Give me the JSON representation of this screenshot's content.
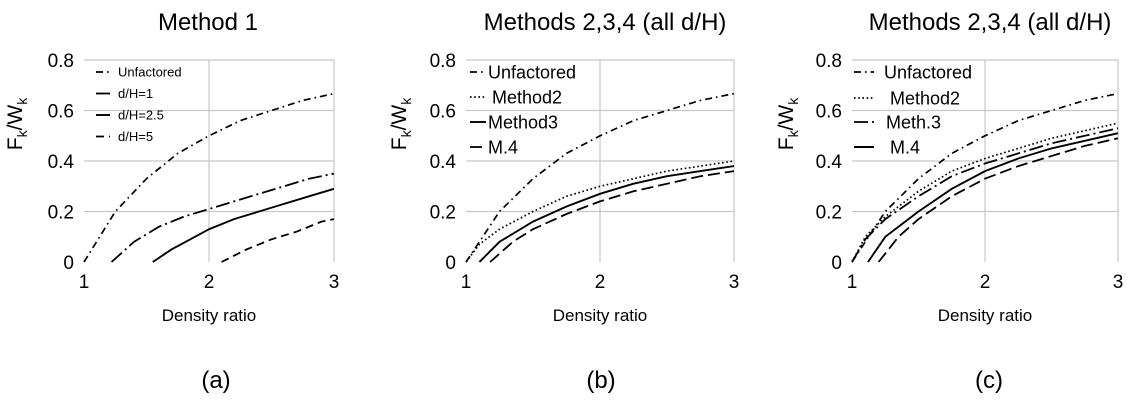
{
  "chart_data": [
    {
      "type": "line",
      "title": "Method 1",
      "panel_label": "(a)",
      "xlabel": "Density ratio",
      "ylabel": "Fk/Wk",
      "ylabel_main": "F",
      "ylabel_sub1": "k",
      "ylabel_mid": "/W",
      "ylabel_sub2": "k",
      "xlim": [
        1,
        3
      ],
      "ylim": [
        0,
        0.8
      ],
      "xticks": [
        "1",
        "2",
        "3"
      ],
      "yticks": [
        "0",
        "0.2",
        "0.4",
        "0.6",
        "0.8"
      ],
      "grid": true,
      "legend_position": "top-left",
      "series": [
        {
          "name": "Unfactored",
          "style": "dashdot",
          "x": [
            1.0,
            1.25,
            1.5,
            1.75,
            2.0,
            2.25,
            2.5,
            2.75,
            3.0
          ],
          "y": [
            0.0,
            0.2,
            0.33,
            0.43,
            0.5,
            0.56,
            0.6,
            0.64,
            0.667
          ]
        },
        {
          "name": "d/H=1",
          "style": "longdashdot",
          "x": [
            1.22,
            1.4,
            1.6,
            1.8,
            2.0,
            2.2,
            2.4,
            2.6,
            2.8,
            3.0
          ],
          "y": [
            0.0,
            0.08,
            0.14,
            0.18,
            0.21,
            0.24,
            0.27,
            0.3,
            0.33,
            0.35
          ]
        },
        {
          "name": "d/H=2.5",
          "style": "solid",
          "x": [
            1.55,
            1.7,
            1.85,
            2.0,
            2.2,
            2.4,
            2.6,
            2.8,
            3.0
          ],
          "y": [
            0.0,
            0.05,
            0.09,
            0.13,
            0.17,
            0.2,
            0.23,
            0.26,
            0.29
          ]
        },
        {
          "name": "d/H=5",
          "style": "dashed",
          "x": [
            2.1,
            2.3,
            2.5,
            2.7,
            2.9,
            3.0
          ],
          "y": [
            0.0,
            0.05,
            0.09,
            0.12,
            0.16,
            0.17
          ]
        }
      ]
    },
    {
      "type": "line",
      "title": "Methods 2,3,4 (all d/H)",
      "panel_label": "(b)",
      "xlabel": "Density ratio",
      "ylabel": "Fk/Wk",
      "ylabel_main": "F",
      "ylabel_sub1": "k",
      "ylabel_mid": "/W",
      "ylabel_sub2": "k",
      "xlim": [
        1,
        3
      ],
      "ylim": [
        0,
        0.8
      ],
      "xticks": [
        "1",
        "2",
        "3"
      ],
      "yticks": [
        "0",
        "0.2",
        "0.4",
        "0.6",
        "0.8"
      ],
      "grid": true,
      "legend_position": "top-left",
      "series": [
        {
          "name": "Unfactored",
          "style": "dashdot",
          "x": [
            1.0,
            1.25,
            1.5,
            1.75,
            2.0,
            2.25,
            2.5,
            2.75,
            3.0
          ],
          "y": [
            0.0,
            0.2,
            0.33,
            0.43,
            0.5,
            0.56,
            0.6,
            0.64,
            0.667
          ]
        },
        {
          "name": "Method2",
          "style": "dotted",
          "x": [
            1.0,
            1.1,
            1.25,
            1.5,
            1.75,
            2.0,
            2.25,
            2.5,
            2.75,
            3.0
          ],
          "y": [
            0.0,
            0.07,
            0.13,
            0.2,
            0.26,
            0.3,
            0.33,
            0.36,
            0.38,
            0.4
          ]
        },
        {
          "name": "Method3",
          "style": "solid",
          "x": [
            1.1,
            1.25,
            1.5,
            1.75,
            2.0,
            2.25,
            2.5,
            2.75,
            3.0
          ],
          "y": [
            0.0,
            0.08,
            0.16,
            0.22,
            0.27,
            0.31,
            0.34,
            0.36,
            0.38
          ]
        },
        {
          "name": "M.4",
          "style": "longdash",
          "x": [
            1.18,
            1.35,
            1.5,
            1.75,
            2.0,
            2.25,
            2.5,
            2.75,
            3.0
          ],
          "y": [
            0.0,
            0.08,
            0.13,
            0.19,
            0.24,
            0.28,
            0.31,
            0.34,
            0.36
          ]
        }
      ]
    },
    {
      "type": "line",
      "title": "Methods 2,3,4 (all d/H)",
      "panel_label": "(c)",
      "xlabel": "Density ratio",
      "ylabel": "Fk/Wk",
      "ylabel_main": "F",
      "ylabel_sub1": "k",
      "ylabel_mid": "/W",
      "ylabel_sub2": "k",
      "xlim": [
        1,
        3
      ],
      "ylim": [
        0,
        0.8
      ],
      "xticks": [
        "1",
        "2",
        "3"
      ],
      "yticks": [
        "0",
        "0.2",
        "0.4",
        "0.6",
        "0.8"
      ],
      "grid": true,
      "legend_position": "top-left",
      "series": [
        {
          "name": "Unfactored",
          "style": "dashdot",
          "x": [
            1.0,
            1.25,
            1.5,
            1.75,
            2.0,
            2.25,
            2.5,
            2.75,
            3.0
          ],
          "y": [
            0.0,
            0.2,
            0.33,
            0.43,
            0.5,
            0.56,
            0.6,
            0.64,
            0.667
          ]
        },
        {
          "name": "Method2",
          "style": "dotted",
          "x": [
            1.0,
            1.1,
            1.25,
            1.5,
            1.75,
            2.0,
            2.25,
            2.5,
            2.75,
            3.0
          ],
          "y": [
            0.0,
            0.1,
            0.18,
            0.28,
            0.36,
            0.41,
            0.45,
            0.49,
            0.52,
            0.55
          ]
        },
        {
          "name": "Meth.3",
          "style": "longdashdot",
          "x": [
            1.0,
            1.1,
            1.25,
            1.5,
            1.75,
            2.0,
            2.25,
            2.5,
            2.75,
            3.0
          ],
          "y": [
            0.0,
            0.09,
            0.17,
            0.26,
            0.34,
            0.39,
            0.43,
            0.47,
            0.5,
            0.53
          ]
        },
        {
          "name": "M.4",
          "style": "solid",
          "x": [
            1.12,
            1.25,
            1.5,
            1.75,
            2.0,
            2.25,
            2.5,
            2.75,
            3.0
          ],
          "y": [
            0.0,
            0.1,
            0.2,
            0.29,
            0.36,
            0.41,
            0.45,
            0.48,
            0.51
          ]
        },
        {
          "name": "",
          "style": "longdash",
          "x": [
            1.2,
            1.35,
            1.5,
            1.75,
            2.0,
            2.25,
            2.5,
            2.75,
            3.0
          ],
          "y": [
            0.0,
            0.1,
            0.17,
            0.26,
            0.33,
            0.38,
            0.42,
            0.46,
            0.49
          ]
        }
      ]
    }
  ],
  "style": {
    "line_color": "#000000",
    "grid_color": "#c8c8c8",
    "background": "#ffffff"
  }
}
